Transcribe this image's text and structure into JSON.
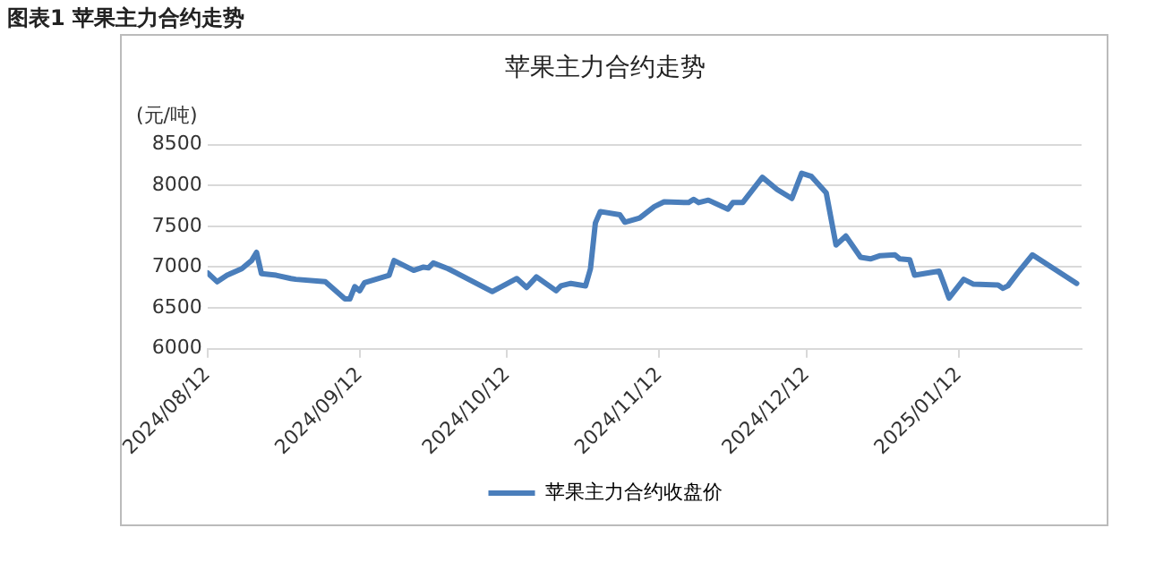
{
  "chart_data": {
    "type": "line",
    "title": "苹果主力合约走势",
    "ylabel": "(元/吨)",
    "annotations": [
      "图表1  苹果主力合约走势"
    ],
    "x": [
      "2024-08-12",
      "2024-08-14",
      "2024-08-16",
      "2024-08-19",
      "2024-08-21",
      "2024-08-22",
      "2024-08-23",
      "2024-08-26",
      "2024-08-29",
      "2024-08-30",
      "2024-09-05",
      "2024-09-09",
      "2024-09-10",
      "2024-09-11",
      "2024-09-12",
      "2024-09-13",
      "2024-09-18",
      "2024-09-19",
      "2024-09-23",
      "2024-09-25",
      "2024-09-26",
      "2024-09-27",
      "2024-09-30",
      "2024-10-09",
      "2024-10-14",
      "2024-10-16",
      "2024-10-18",
      "2024-10-22",
      "2024-10-23",
      "2024-10-25",
      "2024-10-28",
      "2024-10-29",
      "2024-10-30",
      "2024-10-31",
      "2024-11-04",
      "2024-11-05",
      "2024-11-08",
      "2024-11-11",
      "2024-11-13",
      "2024-11-18",
      "2024-11-19",
      "2024-11-20",
      "2024-11-22",
      "2024-11-26",
      "2024-11-27",
      "2024-11-29",
      "2024-12-03",
      "2024-12-06",
      "2024-12-09",
      "2024-12-11",
      "2024-12-13",
      "2024-12-16",
      "2024-12-18",
      "2024-12-20",
      "2024-12-23",
      "2024-12-25",
      "2024-12-27",
      "2024-12-30",
      "2024-12-31",
      "2025-01-02",
      "2025-01-03",
      "2025-01-06",
      "2025-01-08",
      "2025-01-09",
      "2025-01-10",
      "2025-01-13",
      "2025-01-15",
      "2025-01-20",
      "2025-01-21",
      "2025-01-22",
      "2025-01-24",
      "2025-01-27",
      "2025-02-05"
    ],
    "series": [
      {
        "name": "苹果主力合约收盘价",
        "color": "#4a7ebb",
        "values": [
          6930,
          6820,
          6900,
          6980,
          7080,
          7180,
          6920,
          6900,
          6860,
          6850,
          6820,
          6610,
          6610,
          6760,
          6710,
          6810,
          6900,
          7080,
          6960,
          7000,
          6990,
          7050,
          6980,
          6700,
          6860,
          6750,
          6880,
          6710,
          6770,
          6800,
          6770,
          6980,
          7540,
          7680,
          7640,
          7550,
          7600,
          7740,
          7800,
          7790,
          7830,
          7790,
          7820,
          7710,
          7790,
          7790,
          8100,
          7950,
          7840,
          8150,
          8110,
          7910,
          7270,
          7380,
          7120,
          7100,
          7140,
          7150,
          7100,
          7090,
          6900,
          6930,
          6950,
          6790,
          6620,
          6850,
          6790,
          6780,
          6740,
          6770,
          6930,
          7150,
          6800
        ]
      }
    ],
    "xlim": [
      "2024-08-12",
      "2025-02-06"
    ],
    "xticks": [
      {
        "value": "2024-08-12",
        "label": "2024/08/12"
      },
      {
        "value": "2024-09-12",
        "label": "2024/09/12"
      },
      {
        "value": "2024-10-12",
        "label": "2024/10/12"
      },
      {
        "value": "2024-11-12",
        "label": "2024/11/12"
      },
      {
        "value": "2024-12-12",
        "label": "2024/12/12"
      },
      {
        "value": "2025-01-12",
        "label": "2025/01/12"
      }
    ],
    "ylim": [
      6000,
      8500
    ],
    "yticks": [
      6000,
      6500,
      7000,
      7500,
      8000,
      8500
    ],
    "grid": "y",
    "legend": "bottom",
    "marker": "none",
    "line_style": "solid"
  }
}
